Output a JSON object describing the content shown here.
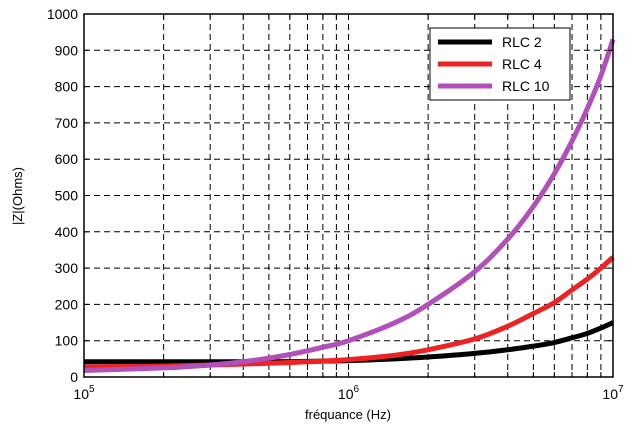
{
  "chart_data": {
    "type": "line",
    "xscale": "log",
    "xlim": [
      100000,
      10000000
    ],
    "ylim": [
      0,
      1000
    ],
    "grid": true,
    "xlabel": "fréquance (Hz)",
    "ylabel": "|Z|(Ohms)",
    "xticks": [
      {
        "value": 100000,
        "base": "10",
        "exp": "5"
      },
      {
        "value": 1000000,
        "base": "10",
        "exp": "6"
      },
      {
        "value": 10000000,
        "base": "10",
        "exp": "7"
      }
    ],
    "yticks": [
      {
        "value": 0,
        "label": "0"
      },
      {
        "value": 100,
        "label": "100"
      },
      {
        "value": 200,
        "label": "200"
      },
      {
        "value": 300,
        "label": "300"
      },
      {
        "value": 400,
        "label": "400"
      },
      {
        "value": 500,
        "label": "500"
      },
      {
        "value": 600,
        "label": "600"
      },
      {
        "value": 700,
        "label": "700"
      },
      {
        "value": 800,
        "label": "800"
      },
      {
        "value": 900,
        "label": "900"
      },
      {
        "value": 1000,
        "label": "1000"
      }
    ],
    "legend_position": "top-right",
    "series": [
      {
        "name": "RLC 2",
        "color": "#000000",
        "x": [
          100000,
          200000,
          300000,
          500000,
          700000,
          1000000,
          1500000,
          2000000,
          3000000,
          4000000,
          5000000,
          6000000,
          7000000,
          8000000,
          9000000,
          10000000
        ],
        "y": [
          42,
          42,
          42,
          42,
          43,
          45,
          50,
          55,
          65,
          75,
          85,
          95,
          108,
          120,
          135,
          150
        ]
      },
      {
        "name": "RLC 4",
        "color": "#ee2222",
        "x": [
          100000,
          200000,
          300000,
          500000,
          700000,
          1000000,
          1500000,
          2000000,
          3000000,
          4000000,
          5000000,
          6000000,
          7000000,
          8000000,
          9000000,
          10000000
        ],
        "y": [
          28,
          30,
          33,
          38,
          42,
          48,
          60,
          75,
          105,
          140,
          175,
          205,
          240,
          270,
          300,
          330
        ]
      },
      {
        "name": "RLC 10",
        "color": "#b050b8",
        "x": [
          100000,
          200000,
          300000,
          400000,
          500000,
          600000,
          700000,
          800000,
          1000000,
          1500000,
          2000000,
          3000000,
          4000000,
          5000000,
          6000000,
          7000000,
          8000000,
          9000000,
          10000000
        ],
        "y": [
          18,
          25,
          33,
          42,
          52,
          62,
          72,
          82,
          100,
          150,
          200,
          290,
          380,
          470,
          560,
          650,
          740,
          830,
          930
        ]
      }
    ]
  }
}
